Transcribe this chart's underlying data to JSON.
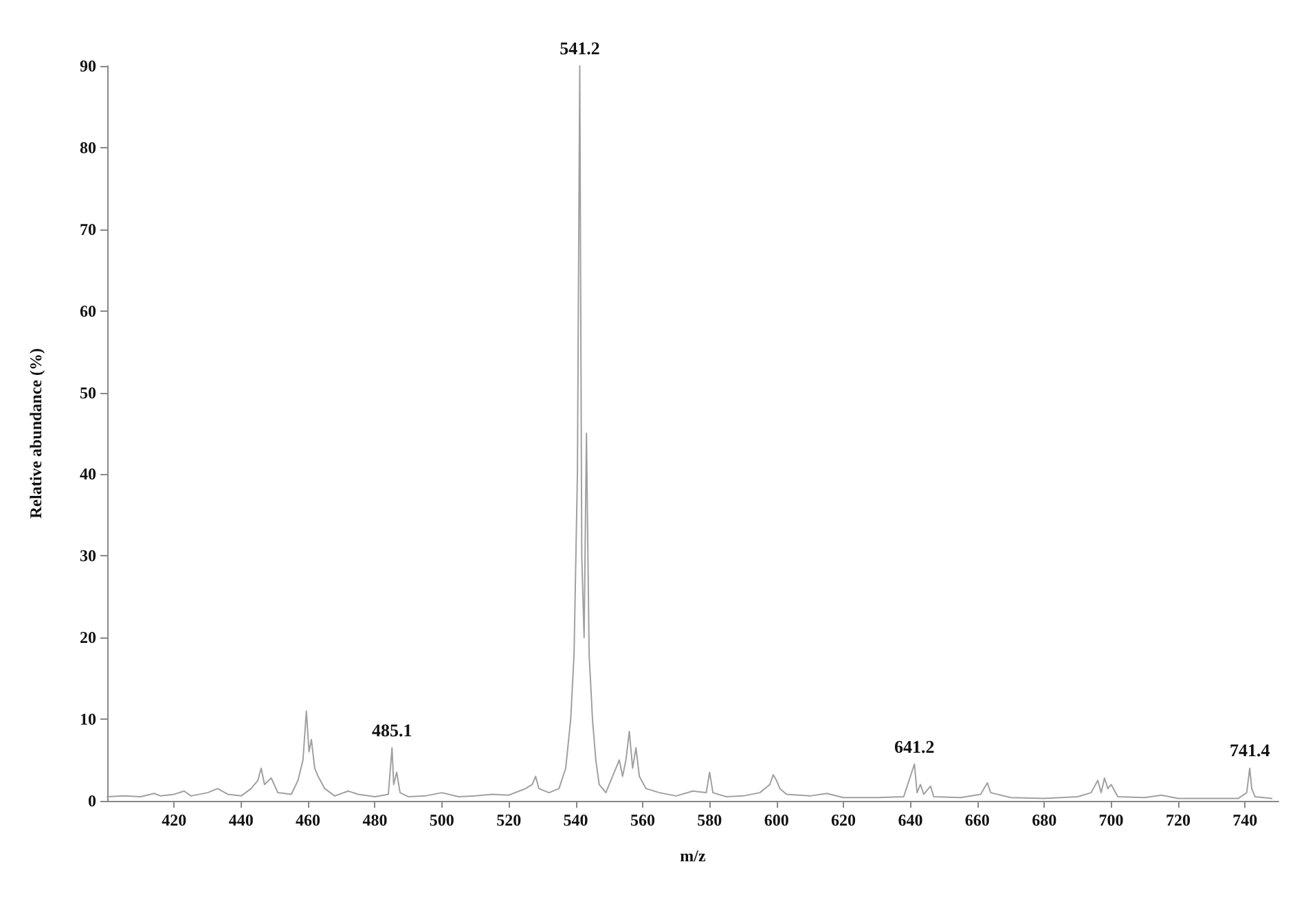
{
  "chart_data": {
    "type": "line",
    "xlabel": "m/z",
    "ylabel": "Relative abundance (%)",
    "xlim": [
      400,
      750
    ],
    "xticks": [
      420,
      440,
      460,
      480,
      500,
      520,
      540,
      560,
      580,
      600,
      620,
      640,
      660,
      680,
      700,
      720,
      740
    ],
    "ylim": [
      0,
      90
    ],
    "yticks": [
      0,
      10,
      20,
      30,
      40,
      50,
      60,
      70,
      80,
      90
    ],
    "grid": false,
    "marker": "none",
    "line_style": "solid",
    "series": [
      {
        "color": "#a0a0a0",
        "x": [
          400,
          405,
          410,
          414,
          416,
          420,
          423,
          425,
          430,
          433,
          436,
          440,
          443,
          445,
          446,
          447,
          449,
          451,
          455,
          457,
          458.5,
          459.5,
          460.3,
          461,
          462,
          463,
          465,
          468,
          472,
          475,
          480,
          484,
          485.1,
          485.6,
          486.5,
          487.5,
          490,
          495,
          500,
          505,
          510,
          515,
          520,
          525,
          527,
          528,
          529,
          532,
          535,
          537,
          538.5,
          539.5,
          540.5,
          541.2,
          541.8,
          542.5,
          543.2,
          544,
          545,
          546,
          547,
          549,
          551,
          553,
          554,
          555,
          556,
          557,
          558,
          559,
          561,
          565,
          570,
          575,
          579,
          580,
          581,
          585,
          590,
          595,
          598,
          599,
          600,
          601,
          603,
          610,
          615,
          620,
          630,
          638,
          641.2,
          642,
          643,
          644,
          646,
          647,
          655,
          661,
          663,
          664,
          670,
          680,
          690,
          694,
          696,
          697,
          698,
          699,
          700,
          702,
          710,
          715,
          720,
          730,
          738,
          740.5,
          741.4,
          742,
          743,
          748
        ],
        "values": [
          0.5,
          0.6,
          0.5,
          0.9,
          0.6,
          0.8,
          1.2,
          0.6,
          1.0,
          1.5,
          0.8,
          0.6,
          1.5,
          2.5,
          4.0,
          2.0,
          2.8,
          1.0,
          0.8,
          2.5,
          5,
          11,
          6,
          7.5,
          4,
          3,
          1.5,
          0.6,
          1.2,
          0.8,
          0.5,
          0.8,
          6.5,
          2,
          3.5,
          1.0,
          0.5,
          0.6,
          1.0,
          0.5,
          0.6,
          0.8,
          0.7,
          1.5,
          2,
          3,
          1.5,
          1.0,
          1.5,
          4,
          10,
          18,
          40,
          90,
          30,
          20,
          45,
          18,
          10,
          5,
          2,
          1,
          3,
          5,
          3,
          5,
          8.5,
          4,
          6.5,
          3,
          1.5,
          1.0,
          0.6,
          1.2,
          1.0,
          3.5,
          1,
          0.5,
          0.6,
          1.0,
          2,
          3.2,
          2.5,
          1.5,
          0.8,
          0.6,
          0.9,
          0.4,
          0.4,
          0.5,
          4.5,
          1,
          2,
          0.8,
          1.8,
          0.5,
          0.4,
          0.8,
          2.2,
          1,
          0.4,
          0.3,
          0.5,
          1,
          2.5,
          1,
          2.8,
          1.5,
          2,
          0.5,
          0.4,
          0.7,
          0.3,
          0.3,
          0.3,
          1,
          4,
          1.5,
          0.5,
          0.3
        ]
      }
    ],
    "annotations": [
      {
        "text": "541.2",
        "x": 541.2,
        "y": 90
      },
      {
        "text": "485.1",
        "x": 485.1,
        "y": 6.5
      },
      {
        "text": "641.2",
        "x": 641.2,
        "y": 4.5
      },
      {
        "text": "741.4",
        "x": 741.4,
        "y": 4
      }
    ]
  }
}
